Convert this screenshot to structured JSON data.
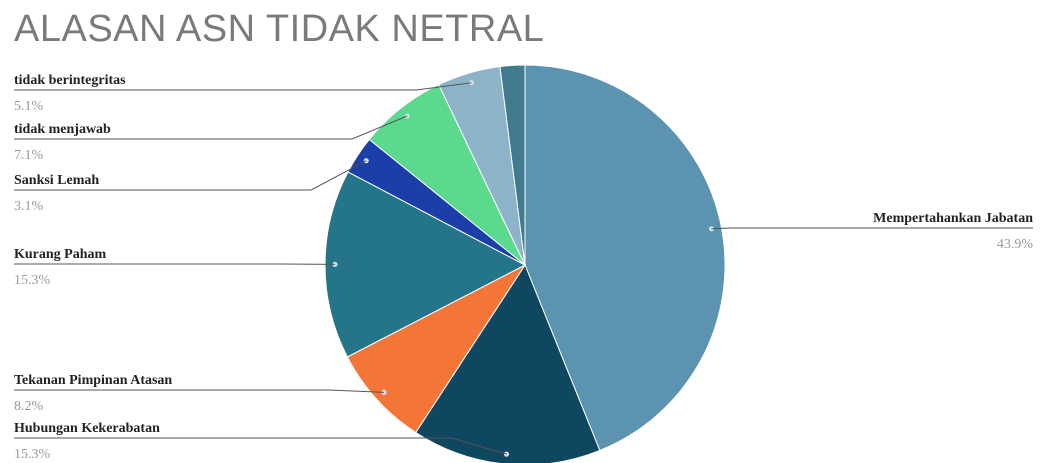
{
  "chart_data": {
    "type": "pie",
    "title": "ALASAN ASN TIDAK NETRAL",
    "start_angle_deg": 0,
    "direction": "clockwise",
    "slices": [
      {
        "label": "Mempertahankan Jabatan",
        "value": 43.9,
        "pct_label": "43.9%",
        "color": "#5b93b0"
      },
      {
        "label": "Hubungan Kekerabatan",
        "value": 15.3,
        "pct_label": "15.3%",
        "color": "#0f4660"
      },
      {
        "label": "Tekanan Pimpinan Atasan",
        "value": 8.2,
        "pct_label": "8.2%",
        "color": "#f47538"
      },
      {
        "label": "Kurang Paham",
        "value": 15.3,
        "pct_label": "15.3%",
        "color": "#24758a"
      },
      {
        "label": "Sanksi Lemah",
        "value": 3.1,
        "pct_label": "3.1%",
        "color": "#1c3ea8"
      },
      {
        "label": "tidak menjawab",
        "value": 7.1,
        "pct_label": "7.1%",
        "color": "#5bd98d"
      },
      {
        "label": "tidak berintegritas",
        "value": 5.1,
        "pct_label": "5.1%",
        "color": "#8db3c8"
      },
      {
        "label": "",
        "value": 2.0,
        "pct_label": "",
        "color": "#3f7a8e"
      }
    ],
    "legend": "none",
    "label_style": "leader-lines"
  }
}
